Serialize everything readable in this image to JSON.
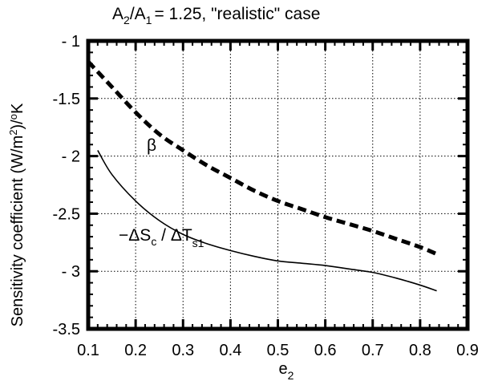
{
  "chart_data": {
    "type": "line",
    "title": "A2/A1 = 1.25, \"realistic\" case",
    "title_parts": {
      "a": "A",
      "a_sub": "2",
      "slash": "/A",
      "b_sub": "1",
      "rest": "= 1.25, \"realistic\" case"
    },
    "xlabel": "e2",
    "xlabel_parts": {
      "base": "e",
      "sub": "2"
    },
    "ylabel": "Sensitivity coefficient (W/m2)/oK",
    "ylabel_parts": {
      "main": "Sensitivity coefficient (W/m",
      "sup1": "2",
      "mid": ")/",
      "sup2": "o",
      "end": "K"
    },
    "xlim": [
      0.1,
      0.9
    ],
    "ylim": [
      -3.5,
      -1
    ],
    "x_ticks": [
      0.1,
      0.2,
      0.3,
      0.4,
      0.5,
      0.6,
      0.7,
      0.8,
      0.9
    ],
    "x_tick_labels": [
      "0.1",
      "0.2",
      "0.3",
      "0.4",
      "0.5",
      "0.6",
      "0.7",
      "0.8",
      "0.9"
    ],
    "y_ticks": [
      -1,
      -1.5,
      -2,
      -2.5,
      -3,
      -3.5
    ],
    "y_tick_labels": [
      "- 1",
      "-1.5",
      "- 2",
      "-2.5",
      "- 3",
      "-3.5"
    ],
    "grid": true,
    "series": [
      {
        "name": "β",
        "style": "dashed",
        "x": [
          0.1,
          0.15,
          0.2,
          0.25,
          0.3,
          0.35,
          0.4,
          0.45,
          0.5,
          0.55,
          0.6,
          0.65,
          0.7,
          0.75,
          0.8,
          0.835
        ],
        "y": [
          -1.18,
          -1.4,
          -1.62,
          -1.81,
          -1.95,
          -2.08,
          -2.19,
          -2.3,
          -2.39,
          -2.46,
          -2.53,
          -2.59,
          -2.65,
          -2.72,
          -2.79,
          -2.85
        ]
      },
      {
        "name": "-ΔSc/ΔTs1",
        "style": "solid",
        "x": [
          0.12,
          0.15,
          0.2,
          0.25,
          0.3,
          0.35,
          0.4,
          0.45,
          0.5,
          0.55,
          0.6,
          0.65,
          0.7,
          0.75,
          0.8,
          0.835
        ],
        "y": [
          -1.95,
          -2.16,
          -2.39,
          -2.56,
          -2.68,
          -2.76,
          -2.82,
          -2.87,
          -2.91,
          -2.93,
          -2.95,
          -2.98,
          -3.01,
          -3.06,
          -3.12,
          -3.17
        ]
      }
    ],
    "annotations": [
      {
        "text": "β",
        "series": "β"
      },
      {
        "text": "-ΔSc/ΔTs1",
        "series": "-ΔSc/ΔTs1",
        "parts": {
          "pre": "−ΔS",
          "sub1": "c",
          "mid": " / ΔT",
          "sub2": "s1"
        }
      }
    ]
  }
}
